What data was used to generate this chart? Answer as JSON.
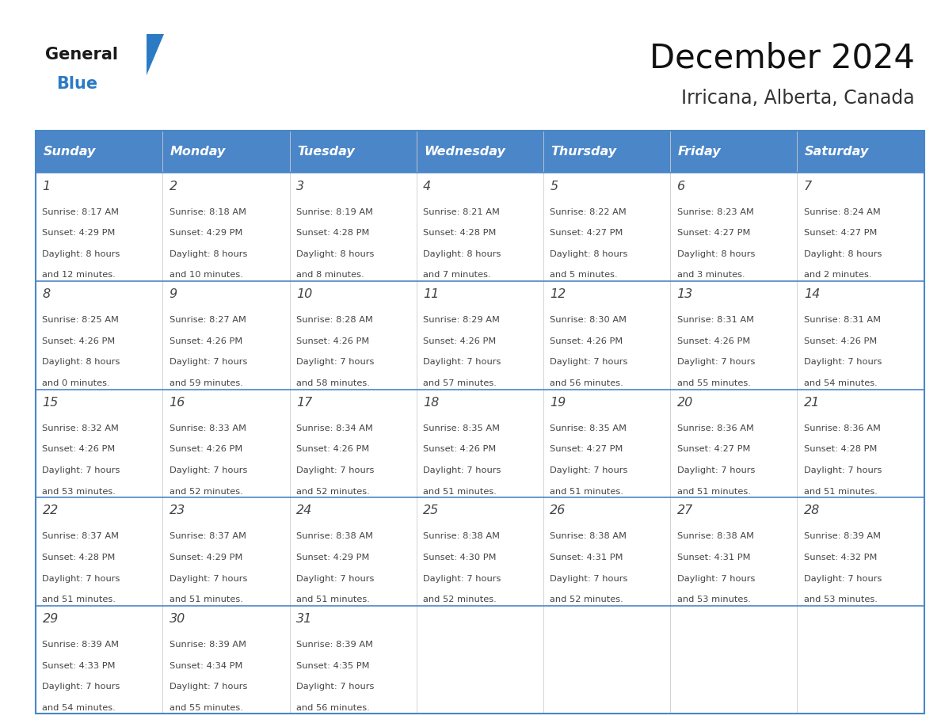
{
  "title": "December 2024",
  "subtitle": "Irricana, Alberta, Canada",
  "days_of_week": [
    "Sunday",
    "Monday",
    "Tuesday",
    "Wednesday",
    "Thursday",
    "Friday",
    "Saturday"
  ],
  "header_bg": "#4a86c8",
  "header_text_color": "#ffffff",
  "cell_bg": "#ffffff",
  "grid_line_color": "#4a86c8",
  "grid_line_inner": "#aaaaaa",
  "text_color": "#444444",
  "calendar_data": [
    [
      {
        "day": 1,
        "sunrise": "8:17 AM",
        "sunset": "4:29 PM",
        "daylight_h": "8 hours",
        "daylight_m": "and 12 minutes."
      },
      {
        "day": 2,
        "sunrise": "8:18 AM",
        "sunset": "4:29 PM",
        "daylight_h": "8 hours",
        "daylight_m": "and 10 minutes."
      },
      {
        "day": 3,
        "sunrise": "8:19 AM",
        "sunset": "4:28 PM",
        "daylight_h": "8 hours",
        "daylight_m": "and 8 minutes."
      },
      {
        "day": 4,
        "sunrise": "8:21 AM",
        "sunset": "4:28 PM",
        "daylight_h": "8 hours",
        "daylight_m": "and 7 minutes."
      },
      {
        "day": 5,
        "sunrise": "8:22 AM",
        "sunset": "4:27 PM",
        "daylight_h": "8 hours",
        "daylight_m": "and 5 minutes."
      },
      {
        "day": 6,
        "sunrise": "8:23 AM",
        "sunset": "4:27 PM",
        "daylight_h": "8 hours",
        "daylight_m": "and 3 minutes."
      },
      {
        "day": 7,
        "sunrise": "8:24 AM",
        "sunset": "4:27 PM",
        "daylight_h": "8 hours",
        "daylight_m": "and 2 minutes."
      }
    ],
    [
      {
        "day": 8,
        "sunrise": "8:25 AM",
        "sunset": "4:26 PM",
        "daylight_h": "8 hours",
        "daylight_m": "and 0 minutes."
      },
      {
        "day": 9,
        "sunrise": "8:27 AM",
        "sunset": "4:26 PM",
        "daylight_h": "7 hours",
        "daylight_m": "and 59 minutes."
      },
      {
        "day": 10,
        "sunrise": "8:28 AM",
        "sunset": "4:26 PM",
        "daylight_h": "7 hours",
        "daylight_m": "and 58 minutes."
      },
      {
        "day": 11,
        "sunrise": "8:29 AM",
        "sunset": "4:26 PM",
        "daylight_h": "7 hours",
        "daylight_m": "and 57 minutes."
      },
      {
        "day": 12,
        "sunrise": "8:30 AM",
        "sunset": "4:26 PM",
        "daylight_h": "7 hours",
        "daylight_m": "and 56 minutes."
      },
      {
        "day": 13,
        "sunrise": "8:31 AM",
        "sunset": "4:26 PM",
        "daylight_h": "7 hours",
        "daylight_m": "and 55 minutes."
      },
      {
        "day": 14,
        "sunrise": "8:31 AM",
        "sunset": "4:26 PM",
        "daylight_h": "7 hours",
        "daylight_m": "and 54 minutes."
      }
    ],
    [
      {
        "day": 15,
        "sunrise": "8:32 AM",
        "sunset": "4:26 PM",
        "daylight_h": "7 hours",
        "daylight_m": "and 53 minutes."
      },
      {
        "day": 16,
        "sunrise": "8:33 AM",
        "sunset": "4:26 PM",
        "daylight_h": "7 hours",
        "daylight_m": "and 52 minutes."
      },
      {
        "day": 17,
        "sunrise": "8:34 AM",
        "sunset": "4:26 PM",
        "daylight_h": "7 hours",
        "daylight_m": "and 52 minutes."
      },
      {
        "day": 18,
        "sunrise": "8:35 AM",
        "sunset": "4:26 PM",
        "daylight_h": "7 hours",
        "daylight_m": "and 51 minutes."
      },
      {
        "day": 19,
        "sunrise": "8:35 AM",
        "sunset": "4:27 PM",
        "daylight_h": "7 hours",
        "daylight_m": "and 51 minutes."
      },
      {
        "day": 20,
        "sunrise": "8:36 AM",
        "sunset": "4:27 PM",
        "daylight_h": "7 hours",
        "daylight_m": "and 51 minutes."
      },
      {
        "day": 21,
        "sunrise": "8:36 AM",
        "sunset": "4:28 PM",
        "daylight_h": "7 hours",
        "daylight_m": "and 51 minutes."
      }
    ],
    [
      {
        "day": 22,
        "sunrise": "8:37 AM",
        "sunset": "4:28 PM",
        "daylight_h": "7 hours",
        "daylight_m": "and 51 minutes."
      },
      {
        "day": 23,
        "sunrise": "8:37 AM",
        "sunset": "4:29 PM",
        "daylight_h": "7 hours",
        "daylight_m": "and 51 minutes."
      },
      {
        "day": 24,
        "sunrise": "8:38 AM",
        "sunset": "4:29 PM",
        "daylight_h": "7 hours",
        "daylight_m": "and 51 minutes."
      },
      {
        "day": 25,
        "sunrise": "8:38 AM",
        "sunset": "4:30 PM",
        "daylight_h": "7 hours",
        "daylight_m": "and 52 minutes."
      },
      {
        "day": 26,
        "sunrise": "8:38 AM",
        "sunset": "4:31 PM",
        "daylight_h": "7 hours",
        "daylight_m": "and 52 minutes."
      },
      {
        "day": 27,
        "sunrise": "8:38 AM",
        "sunset": "4:31 PM",
        "daylight_h": "7 hours",
        "daylight_m": "and 53 minutes."
      },
      {
        "day": 28,
        "sunrise": "8:39 AM",
        "sunset": "4:32 PM",
        "daylight_h": "7 hours",
        "daylight_m": "and 53 minutes."
      }
    ],
    [
      {
        "day": 29,
        "sunrise": "8:39 AM",
        "sunset": "4:33 PM",
        "daylight_h": "7 hours",
        "daylight_m": "and 54 minutes."
      },
      {
        "day": 30,
        "sunrise": "8:39 AM",
        "sunset": "4:34 PM",
        "daylight_h": "7 hours",
        "daylight_m": "and 55 minutes."
      },
      {
        "day": 31,
        "sunrise": "8:39 AM",
        "sunset": "4:35 PM",
        "daylight_h": "7 hours",
        "daylight_m": "and 56 minutes."
      },
      null,
      null,
      null,
      null
    ]
  ],
  "logo_general_color": "#1a1a1a",
  "logo_blue_color": "#2b7bc4",
  "logo_triangle_color": "#2b7bc4",
  "fig_width": 11.88,
  "fig_height": 9.18,
  "dpi": 100
}
